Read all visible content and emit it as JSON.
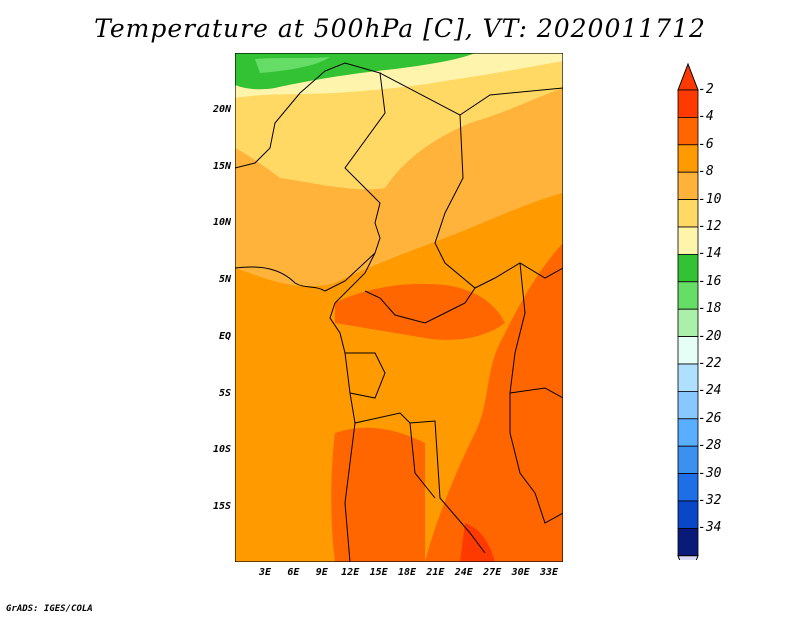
{
  "title": "Temperature at 500hPa [C], VT: 2020011712",
  "credit": "GrADS: IGES/COLA",
  "lat_ticks": [
    "20N",
    "15N",
    "10N",
    "5N",
    "EQ",
    "5S",
    "10S",
    "15S"
  ],
  "lon_ticks": [
    "3E",
    "6E",
    "9E",
    "12E",
    "15E",
    "18E",
    "21E",
    "24E",
    "27E",
    "30E",
    "33E"
  ],
  "colorbar": {
    "labels": [
      "-2",
      "-4",
      "-6",
      "-8",
      "-10",
      "-12",
      "-14",
      "-16",
      "-18",
      "-20",
      "-22",
      "-24",
      "-26",
      "-28",
      "-30",
      "-32",
      "-34"
    ],
    "colors": [
      "#ff3a00",
      "#ff6600",
      "#ff9a00",
      "#ffb33b",
      "#ffd964",
      "#fff4ab",
      "#33c233",
      "#66dd66",
      "#aaf0aa",
      "#e6fff6",
      "#b0e0ff",
      "#88c8ff",
      "#5aaeff",
      "#3c91f0",
      "#1e6ee6",
      "#0a46c8",
      "#0a1a78"
    ],
    "top_arrow_color": "#ff3a00",
    "bottom_arrow_color": "#dcdcff"
  }
}
